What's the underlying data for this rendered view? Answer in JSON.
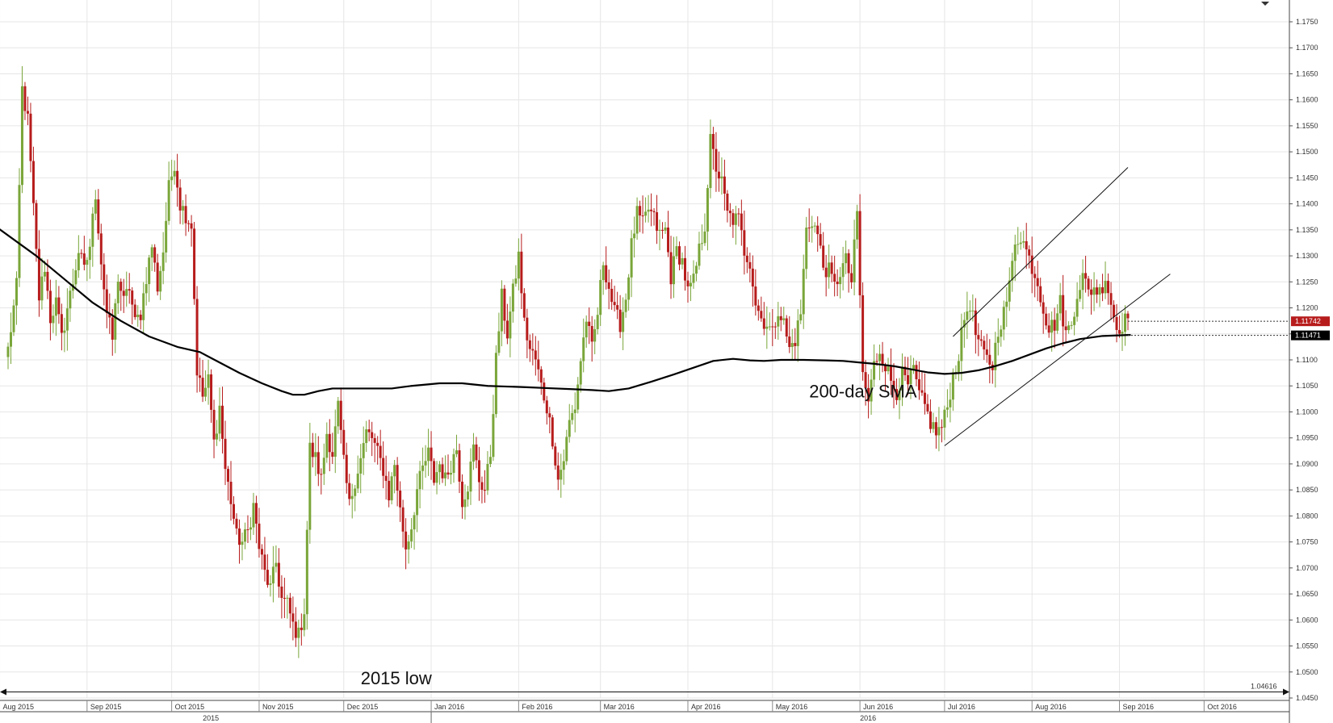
{
  "chart_data": {
    "type": "candlestick",
    "colors": {
      "up": "#7aa63a",
      "down": "#b71c1c",
      "sma": "#000000",
      "grid": "#e6e6e6",
      "last_price_tag": "#b71c1c",
      "sma_tag": "#000000"
    },
    "y_axis": {
      "range": [
        1.045,
        1.178
      ],
      "ticks": [
        "1.1750",
        "1.1700",
        "1.1650",
        "1.1600",
        "1.1550",
        "1.1500",
        "1.1450",
        "1.1400",
        "1.1350",
        "1.1300",
        "1.1250",
        "1.1200",
        "1.1150",
        "1.1100",
        "1.1050",
        "1.1000",
        "1.0950",
        "1.0900",
        "1.0850",
        "1.0800",
        "1.0750",
        "1.0700",
        "1.0650",
        "1.0600",
        "1.0550",
        "1.0500",
        "1.0450"
      ],
      "price_tags": [
        {
          "label": "1.11742",
          "value": 1.11742,
          "style": "last-price"
        },
        {
          "label": "1.11471",
          "value": 1.11471,
          "style": "sma"
        },
        {
          "label": "1.04616",
          "value": 1.04616,
          "style": "line"
        }
      ]
    },
    "x_axis": {
      "month_labels": [
        {
          "label": "Aug 2015",
          "day": -3
        },
        {
          "label": "Sep 2015",
          "day": 28
        },
        {
          "label": "Oct 2015",
          "day": 58
        },
        {
          "label": "Nov 2015",
          "day": 89
        },
        {
          "label": "Dec 2015",
          "day": 119
        },
        {
          "label": "Jan 2016",
          "day": 150
        },
        {
          "label": "Feb 2016",
          "day": 181
        },
        {
          "label": "Mar 2016",
          "day": 210
        },
        {
          "label": "Apr 2016",
          "day": 241
        },
        {
          "label": "May 2016",
          "day": 271
        },
        {
          "label": "Jun 2016",
          "day": 302
        },
        {
          "label": "Jul 2016",
          "day": 332
        },
        {
          "label": "Aug 2016",
          "day": 363
        },
        {
          "label": "Sep 2016",
          "day": 394
        },
        {
          "label": "Oct 2016",
          "day": 424
        }
      ],
      "year_labels": [
        {
          "label": "2015",
          "day": 69
        },
        {
          "label": "2016",
          "day": 302
        }
      ],
      "year_separator_day": 150,
      "day_range": [
        -4,
        451
      ]
    },
    "anchors": [
      [
        0,
        1.112
      ],
      [
        3,
        1.124
      ],
      [
        5,
        1.162
      ],
      [
        7,
        1.156
      ],
      [
        9,
        1.139
      ],
      [
        11,
        1.122
      ],
      [
        13,
        1.128
      ],
      [
        15,
        1.118
      ],
      [
        17,
        1.121
      ],
      [
        19,
        1.114
      ],
      [
        21,
        1.12
      ],
      [
        23,
        1.125
      ],
      [
        25,
        1.131
      ],
      [
        27,
        1.127
      ],
      [
        29,
        1.132
      ],
      [
        31,
        1.142
      ],
      [
        33,
        1.129
      ],
      [
        35,
        1.119
      ],
      [
        37,
        1.114
      ],
      [
        39,
        1.126
      ],
      [
        41,
        1.121
      ],
      [
        43,
        1.124
      ],
      [
        45,
        1.117
      ],
      [
        47,
        1.119
      ],
      [
        49,
        1.126
      ],
      [
        51,
        1.132
      ],
      [
        53,
        1.124
      ],
      [
        55,
        1.131
      ],
      [
        57,
        1.143
      ],
      [
        59,
        1.148
      ],
      [
        61,
        1.14
      ],
      [
        63,
        1.138
      ],
      [
        65,
        1.136
      ],
      [
        67,
        1.108
      ],
      [
        69,
        1.103
      ],
      [
        71,
        1.106
      ],
      [
        73,
        1.094
      ],
      [
        75,
        1.101
      ],
      [
        77,
        1.089
      ],
      [
        79,
        1.083
      ],
      [
        81,
        1.076
      ],
      [
        83,
        1.075
      ],
      [
        85,
        1.077
      ],
      [
        87,
        1.082
      ],
      [
        89,
        1.074
      ],
      [
        91,
        1.069
      ],
      [
        93,
        1.066
      ],
      [
        95,
        1.071
      ],
      [
        97,
        1.064
      ],
      [
        99,
        1.063
      ],
      [
        101,
        1.059
      ],
      [
        103,
        1.057
      ],
      [
        105,
        1.062
      ],
      [
        107,
        1.093
      ],
      [
        109,
        1.091
      ],
      [
        111,
        1.087
      ],
      [
        113,
        1.096
      ],
      [
        115,
        1.092
      ],
      [
        117,
        1.101
      ],
      [
        119,
        1.09
      ],
      [
        121,
        1.082
      ],
      [
        123,
        1.087
      ],
      [
        125,
        1.091
      ],
      [
        127,
        1.096
      ],
      [
        129,
        1.095
      ],
      [
        131,
        1.092
      ],
      [
        133,
        1.089
      ],
      [
        135,
        1.084
      ],
      [
        137,
        1.09
      ],
      [
        139,
        1.081
      ],
      [
        141,
        1.074
      ],
      [
        143,
        1.078
      ],
      [
        145,
        1.085
      ],
      [
        147,
        1.089
      ],
      [
        149,
        1.092
      ],
      [
        151,
        1.087
      ],
      [
        153,
        1.09
      ],
      [
        155,
        1.087
      ],
      [
        157,
        1.09
      ],
      [
        159,
        1.093
      ],
      [
        161,
        1.083
      ],
      [
        163,
        1.086
      ],
      [
        165,
        1.093
      ],
      [
        167,
        1.087
      ],
      [
        169,
        1.085
      ],
      [
        171,
        1.092
      ],
      [
        173,
        1.11
      ],
      [
        175,
        1.122
      ],
      [
        177,
        1.115
      ],
      [
        179,
        1.123
      ],
      [
        181,
        1.13
      ],
      [
        183,
        1.117
      ],
      [
        185,
        1.112
      ],
      [
        187,
        1.11
      ],
      [
        189,
        1.105
      ],
      [
        191,
        1.101
      ],
      [
        193,
        1.095
      ],
      [
        195,
        1.087
      ],
      [
        197,
        1.091
      ],
      [
        199,
        1.098
      ],
      [
        201,
        1.101
      ],
      [
        203,
        1.11
      ],
      [
        205,
        1.118
      ],
      [
        207,
        1.112
      ],
      [
        209,
        1.119
      ],
      [
        211,
        1.129
      ],
      [
        213,
        1.124
      ],
      [
        215,
        1.119
      ],
      [
        217,
        1.117
      ],
      [
        219,
        1.122
      ],
      [
        221,
        1.132
      ],
      [
        223,
        1.138
      ],
      [
        225,
        1.136
      ],
      [
        227,
        1.139
      ],
      [
        229,
        1.137
      ],
      [
        231,
        1.134
      ],
      [
        233,
        1.135
      ],
      [
        235,
        1.126
      ],
      [
        237,
        1.131
      ],
      [
        239,
        1.129
      ],
      [
        241,
        1.123
      ],
      [
        243,
        1.125
      ],
      [
        245,
        1.131
      ],
      [
        247,
        1.136
      ],
      [
        249,
        1.152
      ],
      [
        251,
        1.147
      ],
      [
        253,
        1.144
      ],
      [
        255,
        1.138
      ],
      [
        257,
        1.137
      ],
      [
        259,
        1.137
      ],
      [
        261,
        1.131
      ],
      [
        263,
        1.129
      ],
      [
        265,
        1.121
      ],
      [
        267,
        1.118
      ],
      [
        269,
        1.117
      ],
      [
        271,
        1.115
      ],
      [
        273,
        1.12
      ],
      [
        275,
        1.117
      ],
      [
        277,
        1.112
      ],
      [
        279,
        1.114
      ],
      [
        281,
        1.119
      ],
      [
        283,
        1.135
      ],
      [
        285,
        1.137
      ],
      [
        287,
        1.134
      ],
      [
        289,
        1.128
      ],
      [
        291,
        1.127
      ],
      [
        293,
        1.124
      ],
      [
        295,
        1.127
      ],
      [
        297,
        1.129
      ],
      [
        299,
        1.125
      ],
      [
        301,
        1.138
      ],
      [
        303,
        1.107
      ],
      [
        305,
        1.102
      ],
      [
        307,
        1.109
      ],
      [
        309,
        1.112
      ],
      [
        311,
        1.109
      ],
      [
        313,
        1.106
      ],
      [
        315,
        1.104
      ],
      [
        317,
        1.107
      ],
      [
        319,
        1.105
      ],
      [
        321,
        1.108
      ],
      [
        323,
        1.103
      ],
      [
        325,
        1.101
      ],
      [
        327,
        1.098
      ],
      [
        329,
        1.096
      ],
      [
        331,
        1.097
      ],
      [
        333,
        1.101
      ],
      [
        335,
        1.107
      ],
      [
        337,
        1.111
      ],
      [
        339,
        1.118
      ],
      [
        341,
        1.121
      ],
      [
        343,
        1.115
      ],
      [
        345,
        1.112
      ],
      [
        347,
        1.11
      ],
      [
        349,
        1.109
      ],
      [
        351,
        1.116
      ],
      [
        353,
        1.119
      ],
      [
        355,
        1.124
      ],
      [
        357,
        1.133
      ],
      [
        359,
        1.134
      ],
      [
        361,
        1.131
      ],
      [
        363,
        1.128
      ],
      [
        365,
        1.125
      ],
      [
        367,
        1.12
      ],
      [
        369,
        1.116
      ],
      [
        371,
        1.117
      ],
      [
        373,
        1.121
      ],
      [
        375,
        1.115
      ],
      [
        377,
        1.117
      ],
      [
        379,
        1.123
      ],
      [
        381,
        1.126
      ],
      [
        383,
        1.123
      ],
      [
        385,
        1.124
      ],
      [
        387,
        1.123
      ],
      [
        389,
        1.126
      ],
      [
        391,
        1.121
      ],
      [
        393,
        1.116
      ],
      [
        395,
        1.117
      ],
      [
        397,
        1.118
      ]
    ],
    "sma": [
      [
        -4,
        1.1355
      ],
      [
        10,
        1.13
      ],
      [
        20,
        1.1255
      ],
      [
        30,
        1.121
      ],
      [
        40,
        1.1175
      ],
      [
        50,
        1.1145
      ],
      [
        60,
        1.1125
      ],
      [
        68,
        1.1115
      ],
      [
        75,
        1.1095
      ],
      [
        82,
        1.1075
      ],
      [
        90,
        1.1055
      ],
      [
        97,
        1.104
      ],
      [
        101,
        1.1033
      ],
      [
        105,
        1.1033
      ],
      [
        110,
        1.104
      ],
      [
        115,
        1.1045
      ],
      [
        125,
        1.1045
      ],
      [
        136,
        1.1045
      ],
      [
        143,
        1.105
      ],
      [
        153,
        1.1055
      ],
      [
        161,
        1.1055
      ],
      [
        170,
        1.105
      ],
      [
        181,
        1.1048
      ],
      [
        190,
        1.1046
      ],
      [
        199,
        1.1044
      ],
      [
        207,
        1.1042
      ],
      [
        213,
        1.104
      ],
      [
        220,
        1.1045
      ],
      [
        228,
        1.1058
      ],
      [
        236,
        1.1072
      ],
      [
        243,
        1.1085
      ],
      [
        250,
        1.1098
      ],
      [
        257,
        1.1102
      ],
      [
        263,
        1.1099
      ],
      [
        268,
        1.1098
      ],
      [
        274,
        1.11
      ],
      [
        282,
        1.11
      ],
      [
        290,
        1.1099
      ],
      [
        296,
        1.1098
      ],
      [
        302,
        1.1095
      ],
      [
        308,
        1.1092
      ],
      [
        314,
        1.1088
      ],
      [
        320,
        1.1082
      ],
      [
        326,
        1.1076
      ],
      [
        332,
        1.1073
      ],
      [
        338,
        1.1075
      ],
      [
        344,
        1.108
      ],
      [
        350,
        1.1088
      ],
      [
        356,
        1.1098
      ],
      [
        362,
        1.111
      ],
      [
        368,
        1.1122
      ],
      [
        374,
        1.1132
      ],
      [
        380,
        1.114
      ],
      [
        388,
        1.1146
      ],
      [
        398,
        1.1148
      ]
    ],
    "trendlines": [
      {
        "name": "channel-upper",
        "points": [
          [
            335,
            1.1145
          ],
          [
            397,
            1.147
          ]
        ]
      },
      {
        "name": "channel-lower",
        "points": [
          [
            332,
            1.0935
          ],
          [
            412,
            1.1265
          ]
        ]
      }
    ],
    "annotations": [
      {
        "label": "200-day SMA",
        "day": 284,
        "value": 1.1028
      },
      {
        "label": "2015 low",
        "day": 125,
        "value": 1.0476
      }
    ]
  }
}
